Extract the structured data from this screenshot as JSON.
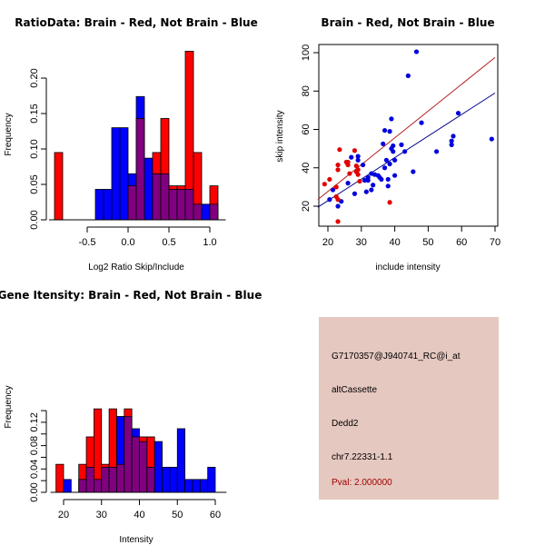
{
  "colors": {
    "brain": "#ff0000",
    "not_brain": "#0000ff",
    "overlap": "#800080",
    "brain_line": "#b22222",
    "not_brain_line": "#00008b",
    "panel_bg": "#e5c8c0",
    "pval_text": "#a00000"
  },
  "chart_data": [
    {
      "id": "ratio-hist",
      "type": "bar",
      "title": "RatioData: Brain - Red, Not Brain - Blue",
      "xlabel": "Log2 Ratio Skip/Include",
      "ylabel": "Frequency",
      "xlim": [
        -0.95,
        1.15
      ],
      "ylim": [
        0,
        0.25
      ],
      "xticks": [
        -0.5,
        0.0,
        0.5,
        1.0
      ],
      "xtick_labels": [
        "-0.5",
        "0.0",
        "0.5",
        "1.0"
      ],
      "yticks": [
        0.0,
        0.05,
        0.1,
        0.15,
        0.2
      ],
      "ytick_labels": [
        "0.00",
        "0.05",
        "0.10",
        "0.15",
        "0.20"
      ],
      "bin_width": 0.1,
      "bin_starts": [
        -0.9,
        -0.8,
        -0.7,
        -0.6,
        -0.5,
        -0.4,
        -0.3,
        -0.2,
        -0.1,
        0.0,
        0.1,
        0.2,
        0.3,
        0.4,
        0.5,
        0.6,
        0.7,
        0.8,
        0.9,
        1.0
      ],
      "series": [
        {
          "name": "Brain",
          "color": "red",
          "values": [
            0.095,
            0,
            0,
            0,
            0,
            0,
            0,
            0,
            0,
            0.048,
            0.143,
            0,
            0.095,
            0.143,
            0.048,
            0.048,
            0.238,
            0.095,
            0,
            0.048
          ]
        },
        {
          "name": "Not Brain",
          "color": "blue",
          "values": [
            0,
            0,
            0,
            0,
            0,
            0.043,
            0.043,
            0.13,
            0.13,
            0.065,
            0.174,
            0.087,
            0.065,
            0.065,
            0.043,
            0.043,
            0.043,
            0.022,
            0.022,
            0.022
          ]
        }
      ]
    },
    {
      "id": "intensity-scatter",
      "type": "scatter",
      "title": "Brain - Red, Not Brain - Blue",
      "xlabel": "include intensity",
      "ylabel": "skip intensity",
      "xlim": [
        17,
        70
      ],
      "ylim": [
        8,
        104
      ],
      "xticks": [
        20,
        30,
        40,
        50,
        60,
        70
      ],
      "yticks": [
        20,
        40,
        60,
        80,
        100
      ],
      "series": [
        {
          "name": "Brain",
          "color": "red",
          "points": [
            [
              19,
              31.5
            ],
            [
              20.5,
              34
            ],
            [
              22.5,
              25
            ],
            [
              22.5,
              30
            ],
            [
              23,
              41.5
            ],
            [
              23,
              39
            ],
            [
              23,
              23.5
            ],
            [
              23,
              12
            ],
            [
              23.5,
              49.5
            ],
            [
              25.5,
              43
            ],
            [
              26,
              43
            ],
            [
              26,
              41.5
            ],
            [
              26.5,
              37
            ],
            [
              28,
              49
            ],
            [
              28.5,
              41
            ],
            [
              28.5,
              38
            ],
            [
              29,
              39
            ],
            [
              29,
              36.5
            ],
            [
              29.5,
              33
            ],
            [
              38.5,
              22
            ]
          ]
        },
        {
          "name": "Not Brain",
          "color": "blue",
          "points": [
            [
              20.5,
              23.5
            ],
            [
              21.5,
              28.5
            ],
            [
              23,
              20
            ],
            [
              24,
              22.5
            ],
            [
              26,
              32
            ],
            [
              27,
              45.5
            ],
            [
              28,
              26.5
            ],
            [
              29,
              44
            ],
            [
              29,
              46
            ],
            [
              30.5,
              41.5
            ],
            [
              31,
              33.5
            ],
            [
              31.5,
              27.5
            ],
            [
              32,
              33.5
            ],
            [
              32,
              35
            ],
            [
              33,
              28.5
            ],
            [
              33,
              37
            ],
            [
              33.5,
              31
            ],
            [
              34,
              36.5
            ],
            [
              35,
              36
            ],
            [
              35.5,
              35
            ],
            [
              36,
              34
            ],
            [
              36.5,
              52.5
            ],
            [
              37,
              40
            ],
            [
              37,
              59.5
            ],
            [
              37.5,
              44
            ],
            [
              38,
              30.5
            ],
            [
              38,
              34
            ],
            [
              38.5,
              42
            ],
            [
              38.5,
              59
            ],
            [
              39,
              50
            ],
            [
              39,
              65.5
            ],
            [
              39.5,
              48.5
            ],
            [
              39.5,
              51.5
            ],
            [
              40,
              36
            ],
            [
              40,
              44
            ],
            [
              42,
              52
            ],
            [
              43,
              48.5
            ],
            [
              44,
              88
            ],
            [
              45.5,
              38
            ],
            [
              46.5,
              100.5
            ],
            [
              48,
              63.5
            ],
            [
              52.5,
              48.5
            ],
            [
              57,
              52
            ],
            [
              57,
              54
            ],
            [
              57.5,
              56.5
            ],
            [
              59,
              68.5
            ],
            [
              69,
              55
            ]
          ]
        }
      ],
      "fit_lines": [
        {
          "name": "Brain fit",
          "color": "red",
          "from": [
            17,
            23.5
          ],
          "to": [
            70,
            97.5
          ]
        },
        {
          "name": "Not Brain fit",
          "color": "blue",
          "from": [
            17,
            19.5
          ],
          "to": [
            70,
            79
          ]
        }
      ]
    },
    {
      "id": "gene-hist",
      "type": "bar",
      "title": "Gene Itensity: Brain - Red, Not Brain - Blue",
      "xlabel": "Intensity",
      "ylabel": "Frequency",
      "xlim": [
        16,
        62
      ],
      "ylim": [
        0,
        0.142
      ],
      "xticks": [
        20,
        30,
        40,
        50,
        60
      ],
      "yticks": [
        0.0,
        0.02,
        0.04,
        0.06,
        0.08,
        0.1,
        0.12,
        0.14
      ],
      "ytick_labels": [
        "0.00",
        "",
        "0.04",
        "",
        "0.08",
        "",
        "0.12",
        ""
      ],
      "bin_width": 2,
      "bin_starts": [
        18,
        20,
        22,
        24,
        26,
        28,
        30,
        32,
        34,
        36,
        38,
        40,
        42,
        44,
        46,
        48,
        50,
        52,
        54,
        56,
        58,
        60
      ],
      "series": [
        {
          "name": "Brain",
          "color": "red",
          "values": [
            0.048,
            0,
            0,
            0.048,
            0.095,
            0.143,
            0.048,
            0.143,
            0.048,
            0.143,
            0.095,
            0.095,
            0.095,
            0,
            0,
            0,
            0,
            0,
            0,
            0,
            0,
            0
          ]
        },
        {
          "name": "Not Brain",
          "color": "blue",
          "values": [
            0,
            0.022,
            0,
            0.022,
            0.043,
            0.022,
            0.043,
            0.043,
            0.13,
            0.13,
            0.109,
            0.087,
            0.043,
            0.087,
            0.043,
            0.043,
            0.109,
            0.022,
            0.022,
            0.022,
            0.043,
            0
          ]
        }
      ]
    }
  ],
  "info_panel": {
    "probe_id": "G7170357@J940741_RC@i_at",
    "event_type": "altCassette",
    "gene": "Dedd2",
    "location": "chr7.22331-1.1",
    "pval": "Pval: 2.000000"
  }
}
